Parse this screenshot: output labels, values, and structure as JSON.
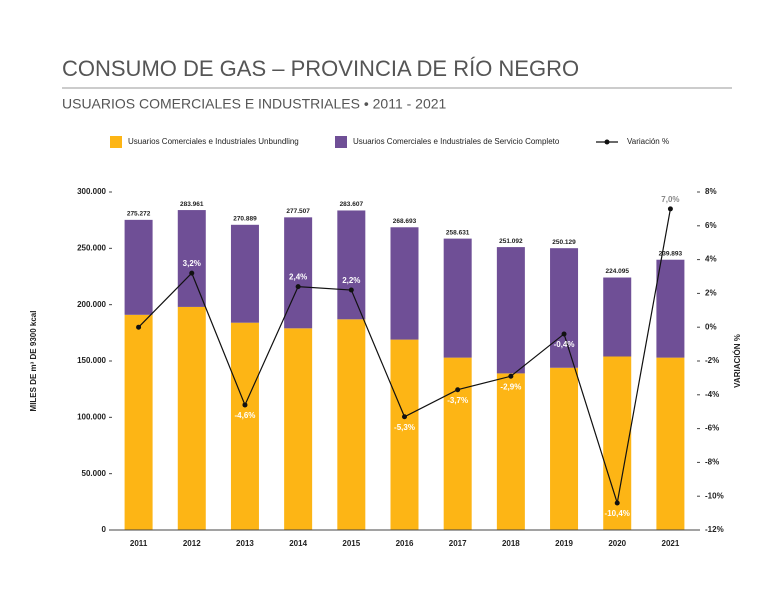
{
  "chart_data": {
    "type": "bar",
    "title": "CONSUMO DE GAS – PROVINCIA DE RÍO NEGRO",
    "subtitle": "USUARIOS COMERCIALES E INDUSTRIALES • 2011 - 2021",
    "ylabel": "MILES DE m³ DE 9300 kcal",
    "y2label": "VARIACIÓN %",
    "categories": [
      "2011",
      "2012",
      "2013",
      "2014",
      "2015",
      "2016",
      "2017",
      "2018",
      "2019",
      "2020",
      "2021"
    ],
    "series": [
      {
        "name": "Usuarios Comerciales e Industriales Unbundling",
        "color": "#fdb515",
        "values": [
          191000,
          198000,
          184000,
          179000,
          187000,
          169000,
          153000,
          139000,
          144000,
          154000,
          153000
        ]
      },
      {
        "name": "Usuarios Comerciales e Industriales de Servicio Completo",
        "color": "#6f4f96",
        "values": [
          84272,
          85961,
          86889,
          98507,
          96607,
          99693,
          105631,
          112092,
          106129,
          70095,
          86893
        ]
      },
      {
        "name": "Variación %",
        "type": "line",
        "axis": "y2",
        "color": "#111111",
        "values": [
          0,
          3.2,
          -4.6,
          2.4,
          2.2,
          -5.3,
          -3.7,
          -2.9,
          -0.4,
          -10.4,
          7.0
        ],
        "value_labels": [
          null,
          "3,2%",
          "-4,6%",
          "2,4%",
          "2,2%",
          "-5,3%",
          "-3,7%",
          "-2,9%",
          "-0,4%",
          "-10,4%",
          "7,0%"
        ]
      }
    ],
    "total_labels": [
      "275.272",
      "283.961",
      "270.889",
      "277.507",
      "283.607",
      "268.693",
      "258.631",
      "251.092",
      "250.129",
      "224.095",
      "239.893"
    ],
    "ylim": [
      0,
      300000
    ],
    "yticks": [
      0,
      {
        "value": 50000,
        "label": "50.000"
      },
      {
        "value": 100000,
        "label": "100.000"
      },
      {
        "value": 150000,
        "label": "150.000"
      },
      {
        "value": 200000,
        "label": "200.000"
      },
      {
        "value": 250000,
        "label": "250.000"
      },
      {
        "value": 300000,
        "label": "300.000"
      }
    ],
    "y2lim": [
      -12,
      8
    ],
    "y2ticks": [
      {
        "value": -12,
        "label": "-12%"
      },
      {
        "value": -10,
        "label": "-10%"
      },
      {
        "value": -8,
        "label": "-8%"
      },
      {
        "value": -6,
        "label": "-6%"
      },
      {
        "value": -4,
        "label": "-4%"
      },
      {
        "value": -2,
        "label": "-2%"
      },
      {
        "value": 0,
        "label": "0%"
      },
      {
        "value": 2,
        "label": "2%"
      },
      {
        "value": 4,
        "label": "4%"
      },
      {
        "value": 6,
        "label": "6%"
      },
      {
        "value": 8,
        "label": "8%"
      }
    ],
    "grid": false,
    "legend": "top"
  }
}
